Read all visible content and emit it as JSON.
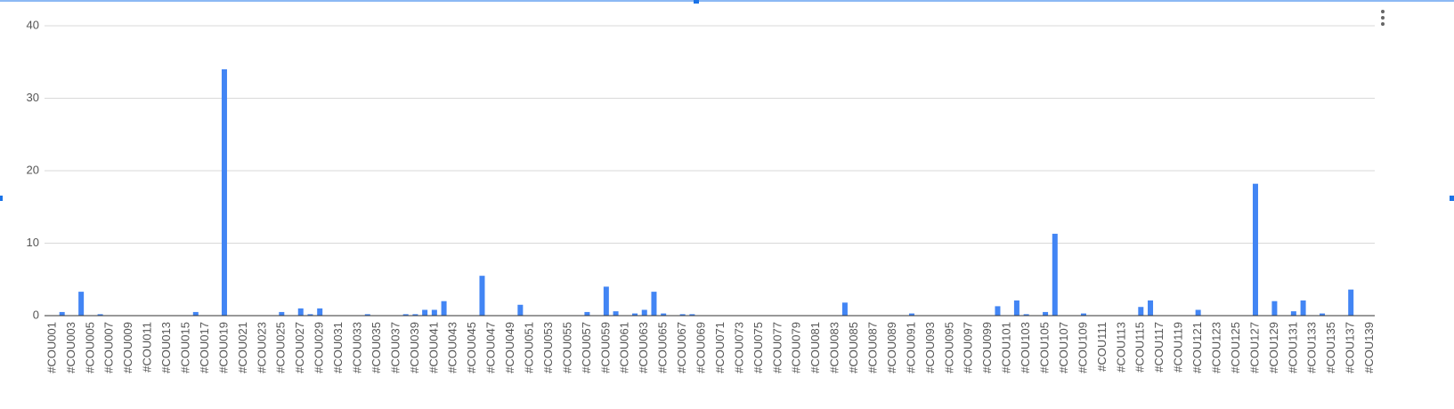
{
  "chart_data": {
    "type": "bar",
    "categories": [
      "#COU001",
      null,
      "#COU003",
      null,
      "#COU005",
      null,
      "#COU007",
      null,
      "#COU009",
      null,
      "#COU011",
      null,
      "#COU013",
      null,
      "#COU015",
      null,
      "#COU017",
      null,
      "#COU019",
      null,
      "#COU021",
      null,
      "#COU023",
      null,
      "#COU025",
      null,
      "#COU027",
      null,
      "#COU029",
      null,
      "#COU031",
      null,
      "#COU033",
      null,
      "#COU035",
      null,
      "#COU037",
      null,
      "#COU039",
      null,
      "#COU041",
      null,
      "#COU043",
      null,
      "#COU045",
      null,
      "#COU047",
      null,
      "#COU049",
      null,
      "#COU051",
      null,
      "#COU053",
      null,
      "#COU055",
      null,
      "#COU057",
      null,
      "#COU059",
      null,
      "#COU061",
      null,
      "#COU063",
      null,
      "#COU065",
      null,
      "#COU067",
      null,
      "#COU069",
      null,
      "#COU071",
      null,
      "#COU073",
      null,
      "#COU075",
      null,
      "#COU077",
      null,
      "#COU079",
      null,
      "#COU081",
      null,
      "#COU083",
      null,
      "#COU085",
      null,
      "#COU087",
      null,
      "#COU089",
      null,
      "#COU091",
      null,
      "#COU093",
      null,
      "#COU095",
      null,
      "#COU097",
      null,
      "#COU099",
      null,
      "#COU101",
      null,
      "#COU103",
      null,
      "#COU105",
      null,
      "#COU107",
      null,
      "#COU109",
      null,
      "#COU111",
      null,
      "#COU113",
      null,
      "#COU115",
      null,
      "#COU117",
      null,
      "#COU119",
      null,
      "#COU121",
      null,
      "#COU123",
      null,
      "#COU125",
      null,
      "#COU127",
      null,
      "#COU129",
      null,
      "#COU131",
      null,
      "#COU133",
      null,
      "#COU135",
      null,
      "#COU137",
      null,
      "#COU139"
    ],
    "values": [
      0,
      0.5,
      0,
      3.3,
      0,
      0.2,
      0,
      0,
      0,
      0,
      0,
      0,
      0,
      0,
      0,
      0.5,
      0,
      0,
      34,
      0,
      0,
      0,
      0,
      0,
      0.5,
      0,
      1.0,
      0.2,
      1.0,
      0,
      0,
      0,
      0,
      0.2,
      0,
      0,
      0,
      0.2,
      0.2,
      0.8,
      0.8,
      2.0,
      0,
      0,
      0,
      5.5,
      0,
      0,
      0,
      1.5,
      0,
      0,
      0,
      0,
      0,
      0,
      0.5,
      0,
      4.0,
      0.6,
      0,
      0.3,
      0.8,
      3.3,
      0.3,
      0,
      0.2,
      0.2,
      0,
      0,
      0,
      0,
      0,
      0,
      0,
      0,
      0,
      0,
      0,
      0,
      0,
      0,
      0,
      1.8,
      0,
      0,
      0,
      0,
      0,
      0,
      0.3,
      0,
      0,
      0,
      0,
      0,
      0,
      0,
      0,
      1.3,
      0,
      2.1,
      0.2,
      0,
      0.5,
      11.3,
      0,
      0,
      0.3,
      0,
      0,
      0,
      0,
      0,
      1.2,
      2.1,
      0,
      0,
      0,
      0,
      0.8,
      0,
      0,
      0,
      0,
      0,
      18.2,
      0,
      2.0,
      0,
      0.6,
      2.1,
      0,
      0.3,
      0,
      0,
      3.6,
      0,
      0
    ],
    "color": "#4285f4",
    "ylim": [
      0,
      40
    ],
    "yticks": [
      0,
      10,
      20,
      30,
      40
    ],
    "grid": true
  }
}
